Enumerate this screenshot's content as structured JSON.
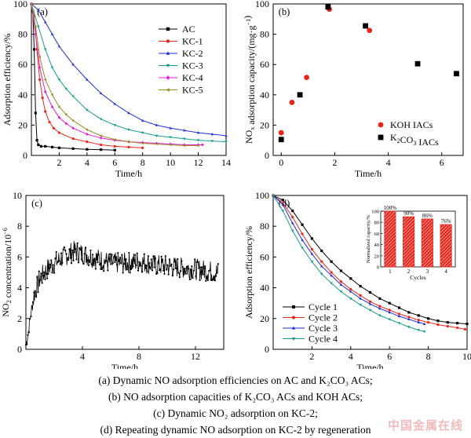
{
  "captions": [
    "(a) Dynamic NO adsorption efficiencies on AC and K₂CO₃ ACs;",
    "(b) NO adsorption capacities of K₂CO₃ ACs and KOH ACs;",
    "(c) Dynamic NO₂ adsorption on KC-2;",
    "(d) Repeating dynamic NO adsorption on KC-2 by regeneration"
  ],
  "watermark": "中国金属在线",
  "chart_data": [
    {
      "id": "a",
      "panel_label": "(a)",
      "type": "line",
      "xlabel": "Time/h",
      "ylabel": "Adsorption efficiency/%",
      "xlim": [
        0,
        14
      ],
      "ylim": [
        0,
        100
      ],
      "xticks": [
        2,
        4,
        6,
        8,
        10,
        12,
        14
      ],
      "yticks": [
        0,
        20,
        40,
        60,
        80,
        100
      ],
      "legend_position": "top-right",
      "series": [
        {
          "name": "AC",
          "color": "#000000",
          "marker": "square",
          "x": [
            0,
            0.1,
            0.2,
            0.3,
            0.4,
            0.5,
            0.7,
            1,
            1.5,
            2,
            3,
            4,
            5,
            6
          ],
          "y": [
            100,
            95,
            70,
            28,
            10,
            7,
            6,
            6,
            5.5,
            5,
            4.5,
            4,
            3.8,
            3.5
          ]
        },
        {
          "name": "KC-1",
          "color": "#e8261c",
          "marker": "circle",
          "x": [
            0,
            0.2,
            0.4,
            0.6,
            0.8,
            1,
            1.3,
            1.6,
            2,
            3,
            4,
            5,
            6,
            7,
            8
          ],
          "y": [
            100,
            92,
            70,
            50,
            38,
            29,
            22,
            18,
            15,
            11,
            9,
            7,
            6,
            5.5,
            5
          ]
        },
        {
          "name": "KC-2",
          "color": "#1f2ed1",
          "marker": "triangle-up",
          "x": [
            0,
            0.5,
            1,
            1.5,
            2,
            3,
            4,
            5,
            6,
            7,
            8,
            9,
            10,
            11,
            12,
            13,
            14
          ],
          "y": [
            100,
            96,
            88,
            80,
            72,
            60,
            50,
            41,
            34,
            28,
            23,
            20,
            18,
            16.5,
            15,
            14,
            13
          ]
        },
        {
          "name": "KC-3",
          "color": "#199b8c",
          "marker": "triangle-down",
          "x": [
            0,
            0.5,
            1,
            1.5,
            2,
            2.5,
            3,
            4,
            5,
            6,
            7,
            8,
            9,
            10,
            11,
            12,
            13,
            14
          ],
          "y": [
            100,
            85,
            70,
            58,
            50,
            44,
            39,
            30,
            24,
            20,
            17,
            15,
            13,
            12,
            11,
            10,
            9.5,
            9
          ]
        },
        {
          "name": "KC-4",
          "color": "#e61fd3",
          "marker": "diamond",
          "x": [
            0,
            0.3,
            0.6,
            1,
            1.5,
            2,
            2.5,
            3,
            4,
            5,
            6,
            7,
            8,
            9,
            10,
            11,
            12,
            12.3
          ],
          "y": [
            100,
            80,
            58,
            42,
            32,
            25,
            21,
            18,
            14,
            11.5,
            10,
            9,
            8.5,
            8,
            7.5,
            7,
            7,
            7
          ]
        },
        {
          "name": "KC-5",
          "color": "#9a8a23",
          "marker": "triangle-left",
          "x": [
            0,
            0.3,
            0.6,
            1,
            1.5,
            2,
            2.5,
            3,
            4,
            5,
            6,
            7,
            8,
            9,
            10,
            11,
            12
          ],
          "y": [
            100,
            85,
            65,
            50,
            40,
            32,
            27,
            23,
            17,
            13,
            10.5,
            9,
            8,
            7.5,
            7,
            6.5,
            6.5
          ]
        }
      ]
    },
    {
      "id": "b",
      "panel_label": "(b)",
      "type": "scatter",
      "xlabel": "Time/h",
      "ylabel_parts": [
        "NO",
        "x",
        " adsorption capacity/(mg·g",
        "−1",
        ")"
      ],
      "xlim": [
        -0.3,
        6.8
      ],
      "ylim": [
        0,
        100
      ],
      "xticks": [
        0,
        2,
        4,
        6
      ],
      "yticks": [
        0,
        20,
        40,
        60,
        80,
        100
      ],
      "legend_position": "bottom-right",
      "series": [
        {
          "name": "KOH IACs",
          "name_parts": [
            "KOH IACs"
          ],
          "color": "#e8261c",
          "marker": "circle",
          "x": [
            0,
            0.4,
            0.95,
            1.8,
            3.3
          ],
          "y": [
            15,
            35,
            51.5,
            96.5,
            82.5
          ]
        },
        {
          "name": "K2CO3 IACs",
          "name_parts": [
            "K",
            "2",
            "CO",
            "3",
            " IACs"
          ],
          "color": "#000000",
          "marker": "square",
          "x": [
            0,
            0.7,
            1.75,
            3.15,
            5.1,
            6.55
          ],
          "y": [
            10.5,
            40,
            98,
            85.5,
            60.5,
            54
          ]
        }
      ]
    },
    {
      "id": "c",
      "panel_label": "(c)",
      "type": "line",
      "xlabel": "Time/h",
      "ylabel_parts": [
        "NO",
        "2",
        " concentration/10",
        "−6"
      ],
      "xlim": [
        0,
        14
      ],
      "ylim": [
        0,
        10
      ],
      "xticks": [
        4,
        8,
        12
      ],
      "yticks": [
        0,
        2,
        4,
        6,
        8,
        10
      ],
      "series": [
        {
          "name": "",
          "color": "#000000",
          "marker": "dot",
          "noisy": true,
          "x": [
            0,
            0.15,
            0.3,
            0.6,
            1,
            1.5,
            2,
            2.5,
            3,
            3.5,
            4,
            5,
            6,
            7,
            8,
            9,
            10,
            11,
            12,
            13,
            13.6
          ],
          "y": [
            0.3,
            1.0,
            2.0,
            3.6,
            4.6,
            5.2,
            5.6,
            5.9,
            6.2,
            6.4,
            6.2,
            5.9,
            5.6,
            5.6,
            5.7,
            5.5,
            5.4,
            5.3,
            5.2,
            5.1,
            5.0
          ]
        }
      ]
    },
    {
      "id": "d",
      "panel_label": "(d)",
      "type": "line",
      "xlabel": "Time/h",
      "ylabel": "Adsorption efficiency/%",
      "xlim": [
        0,
        10
      ],
      "ylim": [
        0,
        100
      ],
      "xticks": [
        2,
        4,
        6,
        8,
        10
      ],
      "yticks": [
        0,
        20,
        40,
        60,
        80,
        100
      ],
      "legend_position": "bottom-left",
      "series": [
        {
          "name": "Cycle 1",
          "color": "#000000",
          "marker": "square",
          "x": [
            0,
            0.5,
            1,
            1.5,
            2,
            2.5,
            3,
            3.5,
            4,
            4.5,
            5,
            5.5,
            6,
            6.5,
            7,
            7.5,
            8,
            8.5,
            9,
            9.5,
            10
          ],
          "y": [
            100,
            97,
            90,
            81,
            72,
            64,
            57,
            51,
            46,
            41,
            37,
            33,
            30,
            27,
            24,
            22,
            20,
            18.5,
            17.5,
            17,
            16.5
          ]
        },
        {
          "name": "Cycle 2",
          "color": "#e8261c",
          "marker": "circle",
          "x": [
            0,
            0.5,
            1,
            1.5,
            2,
            2.5,
            3,
            3.5,
            4,
            4.5,
            5,
            5.5,
            6,
            6.5,
            7,
            7.5,
            8,
            8.5,
            9,
            9.5,
            9.9
          ],
          "y": [
            100,
            95,
            86,
            75,
            65,
            57,
            50,
            44,
            39,
            35,
            31,
            28,
            25.5,
            23,
            21,
            19,
            17.5,
            16,
            15,
            14,
            13
          ]
        },
        {
          "name": "Cycle 3",
          "color": "#1f2ed1",
          "marker": "triangle-up",
          "x": [
            0,
            0.5,
            1,
            1.5,
            2,
            2.5,
            3,
            3.5,
            4,
            4.5,
            5,
            5.5,
            6,
            6.5,
            7,
            7.5,
            7.8
          ],
          "y": [
            100,
            94,
            82,
            71,
            62,
            54,
            48,
            42,
            37.5,
            33,
            29.5,
            26.5,
            24,
            21.5,
            19.5,
            17.5,
            16.5
          ]
        },
        {
          "name": "Cycle 4",
          "color": "#199b8c",
          "marker": "triangle-down",
          "x": [
            0,
            0.5,
            1,
            1.5,
            2,
            2.5,
            3,
            3.5,
            4,
            4.5,
            5,
            5.5,
            6,
            6.5,
            7,
            7.5,
            7.8
          ],
          "y": [
            100,
            90,
            77,
            66,
            57,
            49,
            43,
            37.5,
            33,
            29,
            25.5,
            22,
            19.5,
            17,
            14.5,
            12.5,
            11.5
          ]
        }
      ],
      "inset": {
        "type": "bar",
        "xlabel": "Cycles",
        "ylabel": "Normalized capacity/%",
        "categories": [
          "1",
          "2",
          "3",
          "4"
        ],
        "values": [
          100,
          90,
          86,
          76
        ],
        "value_labels": [
          "100%",
          "90%",
          "86%",
          "76%"
        ],
        "ylim": [
          0,
          100
        ],
        "yticks": [
          0,
          20,
          40,
          60,
          80,
          100
        ],
        "color": "#e8261c"
      }
    }
  ]
}
